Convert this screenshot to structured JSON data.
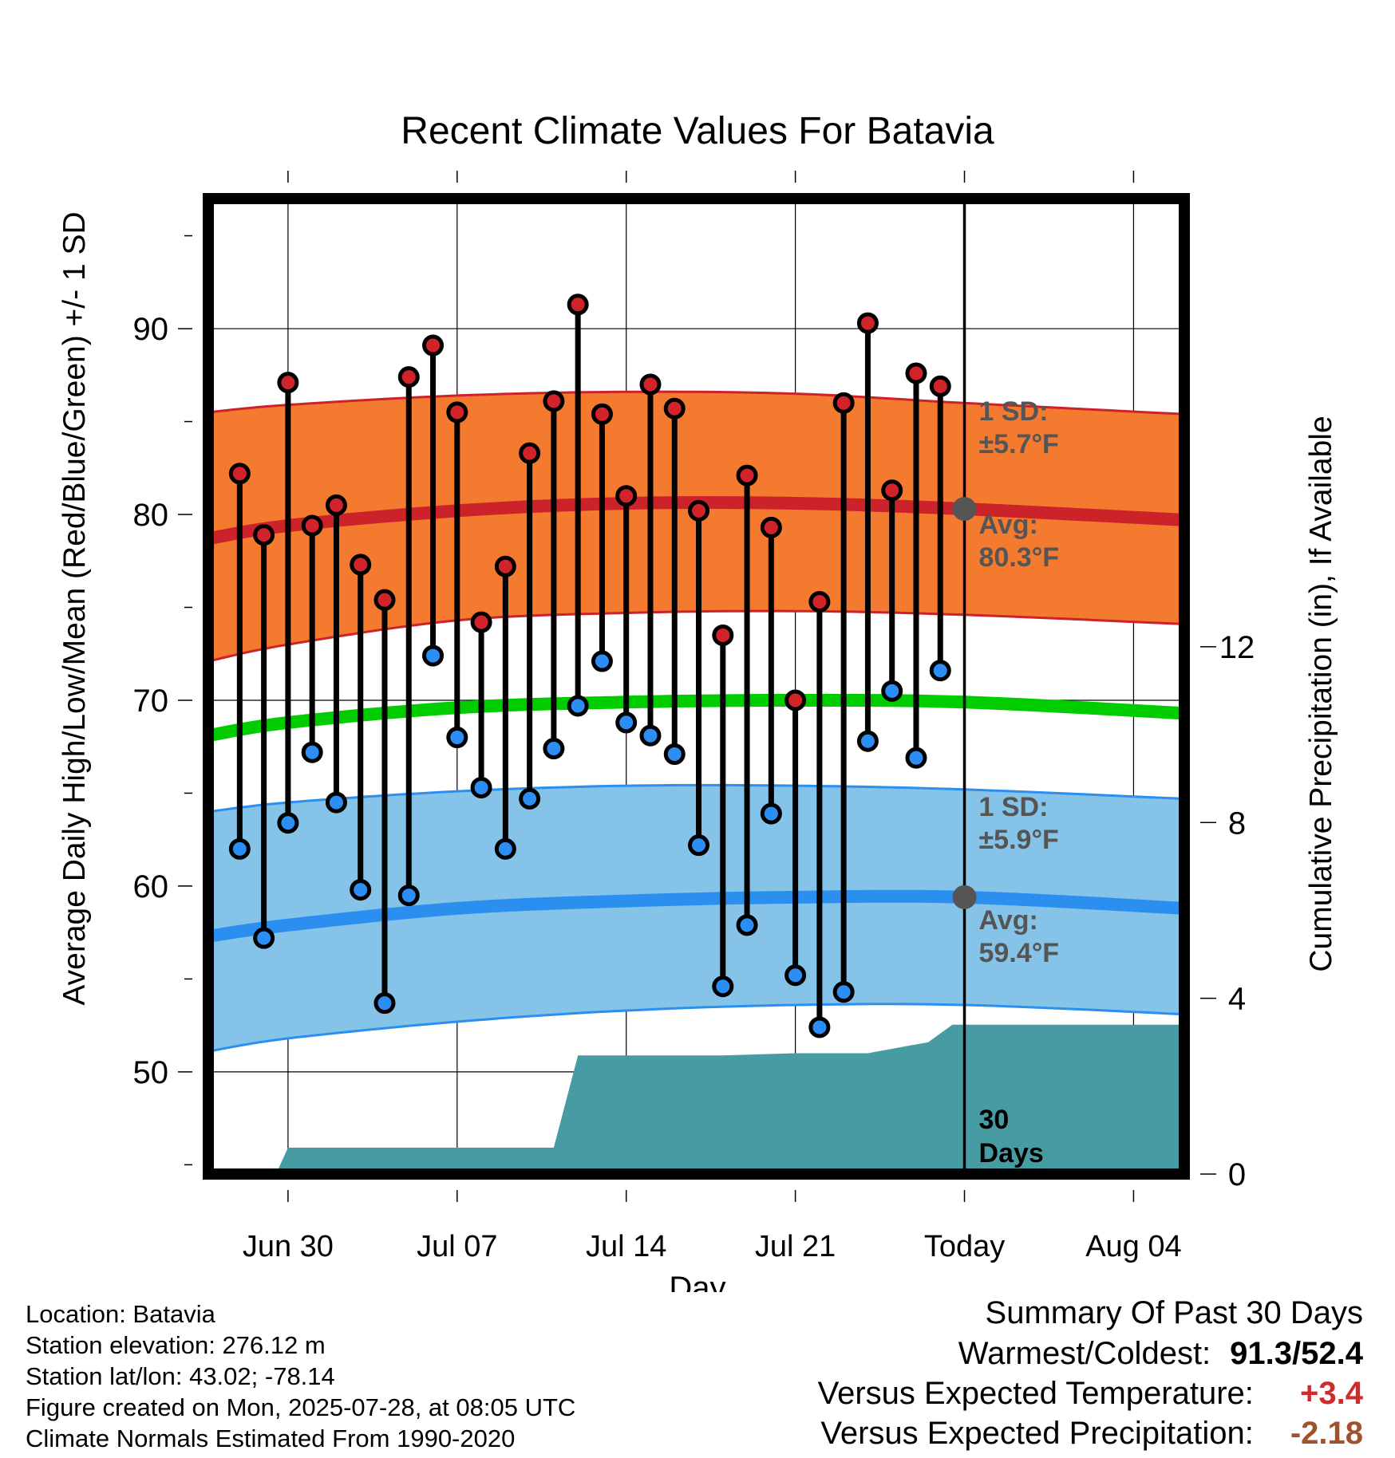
{
  "chart_data": {
    "type": "line",
    "title": "Recent Climate Values For Batavia",
    "xlabel": "Day",
    "ylabel": "Average Daily High/Low/Mean (Red/Blue/Green) +/- 1 SD",
    "y2label": "Cumulative Precipitation (in), If Available",
    "ylim": [
      44.5,
      97
    ],
    "y2lim": [
      0,
      22.2
    ],
    "xlim": [
      -3.3,
      37.1
    ],
    "x_ticks": [
      {
        "day": 0,
        "label": "Jun 30"
      },
      {
        "day": 7,
        "label": "Jul 07"
      },
      {
        "day": 14,
        "label": "Jul 14"
      },
      {
        "day": 21,
        "label": "Jul 21"
      },
      {
        "day": 28,
        "label": "Today"
      },
      {
        "day": 35,
        "label": "Aug 04"
      }
    ],
    "y_ticks": [
      50,
      60,
      70,
      80,
      90
    ],
    "y2_ticks": [
      0,
      4,
      8,
      12
    ],
    "today_day": 28,
    "days": [
      -2,
      -1,
      0,
      1,
      2,
      3,
      4,
      5,
      6,
      7,
      8,
      9,
      10,
      11,
      12,
      13,
      14,
      15,
      16,
      17,
      18,
      19,
      20,
      21,
      22,
      23,
      24,
      25,
      26,
      27
    ],
    "daily_high": [
      82.2,
      78.9,
      87.1,
      79.4,
      80.5,
      77.3,
      75.4,
      87.4,
      89.1,
      85.5,
      74.2,
      77.2,
      83.3,
      86.1,
      91.3,
      85.4,
      81.0,
      87.0,
      85.7,
      80.2,
      73.5,
      82.1,
      79.3,
      70.0,
      75.3,
      86.0,
      90.3,
      81.3,
      87.6,
      86.9
    ],
    "daily_low": [
      62.0,
      57.2,
      63.4,
      67.2,
      64.5,
      59.8,
      53.7,
      59.5,
      72.4,
      68.0,
      65.3,
      62.0,
      64.7,
      67.4,
      69.7,
      72.1,
      68.8,
      68.1,
      67.1,
      62.2,
      54.6,
      57.9,
      63.9,
      55.2,
      52.4,
      54.3,
      67.8,
      70.5,
      66.9,
      71.6
    ],
    "normals": {
      "days": [
        -3.3,
        0,
        7,
        14,
        21,
        28,
        37.1
      ],
      "high_avg": [
        78.7,
        79.4,
        80.2,
        80.6,
        80.6,
        80.3,
        79.7
      ],
      "high_plus_sd": [
        85.5,
        85.9,
        86.4,
        86.6,
        86.5,
        86.0,
        85.4
      ],
      "high_minus_sd": [
        72.1,
        73.0,
        74.3,
        74.7,
        74.8,
        74.6,
        74.1
      ],
      "mean": [
        68.1,
        68.8,
        69.6,
        69.9,
        70.0,
        69.9,
        69.3
      ],
      "low_avg": [
        57.3,
        57.9,
        58.8,
        59.2,
        59.4,
        59.4,
        58.8
      ],
      "low_plus_sd": [
        64.0,
        64.5,
        65.1,
        65.4,
        65.4,
        65.2,
        64.7
      ],
      "low_minus_sd": [
        51.1,
        51.8,
        52.7,
        53.3,
        53.6,
        53.6,
        53.1
      ]
    },
    "precip_cumulative": {
      "days": [
        -3.3,
        -0.5,
        0,
        11,
        12,
        18,
        21,
        24,
        26.5,
        27.5,
        37.1
      ],
      "values": [
        0,
        0,
        0.6,
        0.6,
        2.7,
        2.7,
        2.75,
        2.75,
        3.0,
        3.4,
        3.4
      ]
    },
    "annotations": {
      "high_sd_label_1": "1 SD:",
      "high_sd_label_2": "±5.7°F",
      "high_avg_label_1": "Avg:",
      "high_avg_label_2": "80.3°F",
      "low_sd_label_1": "1 SD:",
      "low_sd_label_2": "±5.9°F",
      "low_avg_label_1": "Avg:",
      "low_avg_label_2": "59.4°F",
      "precip_label_1": "30",
      "precip_label_2": "Days",
      "today_high_avg": 80.3,
      "today_low_avg": 59.4
    },
    "colors": {
      "high_band": "#f47a30",
      "high_line": "#cc2229",
      "low_band": "#85c3e8",
      "low_line": "#2b8ff0",
      "mean_line": "#00cc00",
      "precip_fill": "#479ca3",
      "high_marker": "#d2232a",
      "low_marker": "#2c8ef4",
      "annotation_text": "#555555"
    }
  },
  "info": {
    "location": "Location: Batavia",
    "elevation": "Station elevation: 276.12 m",
    "latlon": "Station lat/lon: 43.02; -78.14",
    "created": "Figure created on Mon, 2025-07-28, at 08:05 UTC",
    "normals": "Climate Normals Estimated From 1990-2020"
  },
  "summary": {
    "title": "Summary Of Past 30 Days",
    "warm_cold_label": "Warmest/Coldest:",
    "warm_cold_value": "91.3/52.4",
    "temp_label": "Versus Expected Temperature:",
    "temp_value": "+3.4",
    "temp_color": "#d12a2a",
    "precip_label": "Versus Expected Precipitation:",
    "precip_value": "-2.18",
    "precip_color": "#a0522d"
  }
}
